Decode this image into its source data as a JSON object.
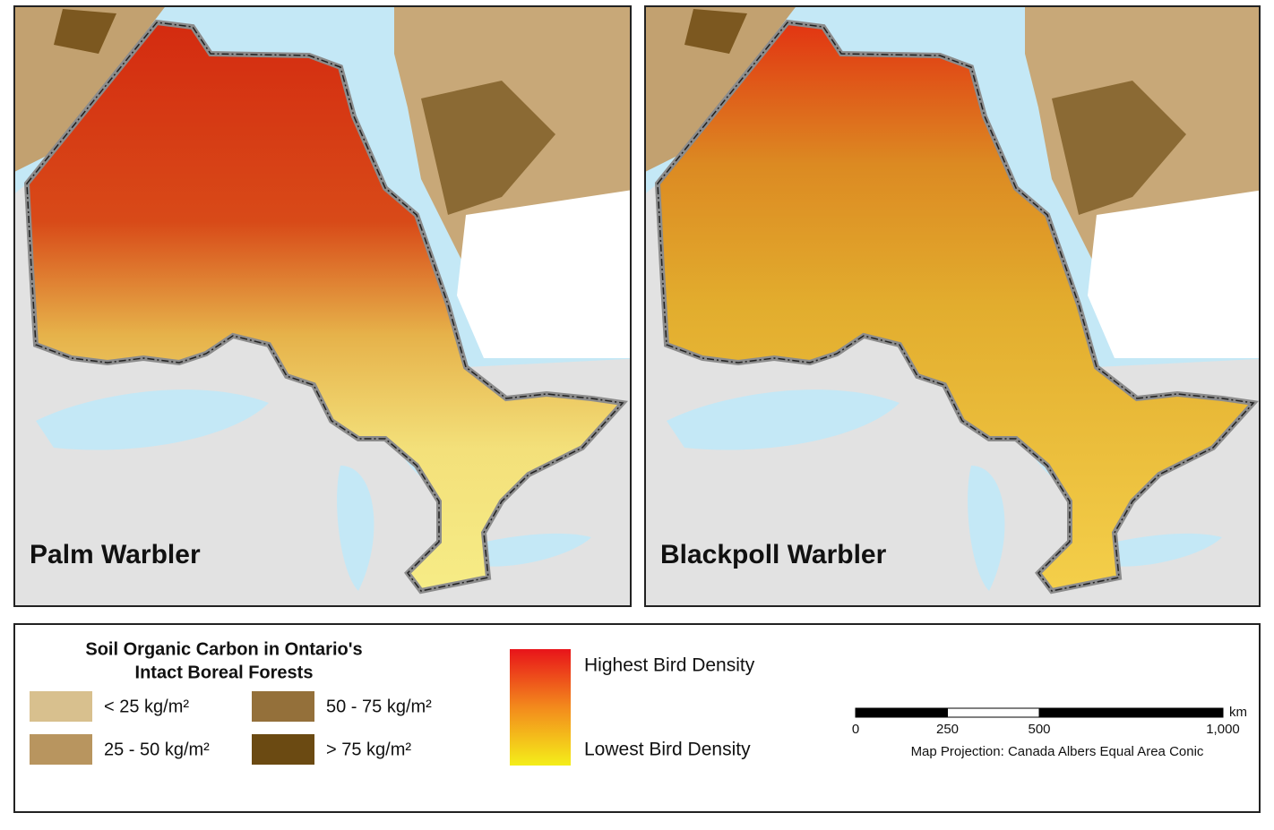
{
  "maps": [
    {
      "title": "Palm Warbler"
    },
    {
      "title": "Blackpoll Warbler"
    }
  ],
  "legend": {
    "soil_title": [
      "Soil Organic Carbon in Ontario's",
      "Intact Boreal Forests"
    ],
    "soil_classes": [
      {
        "label": "< 25 kg/m²",
        "color": "#d8c08e"
      },
      {
        "label": "25 - 50 kg/m²",
        "color": "#b8955f"
      },
      {
        "label": "50 - 75 kg/m²",
        "color": "#94703a"
      },
      {
        "label": "> 75 kg/m²",
        "color": "#6b4a12"
      }
    ],
    "density": {
      "high": "Highest Bird Density",
      "low": "Lowest Bird Density"
    }
  },
  "scale_bar": {
    "unit": "km",
    "ticks": [
      0,
      250,
      500,
      {
        "value": 1000,
        "label": "1,000"
      }
    ],
    "projection": "Map Projection: Canada Albers Equal Area Conic"
  }
}
